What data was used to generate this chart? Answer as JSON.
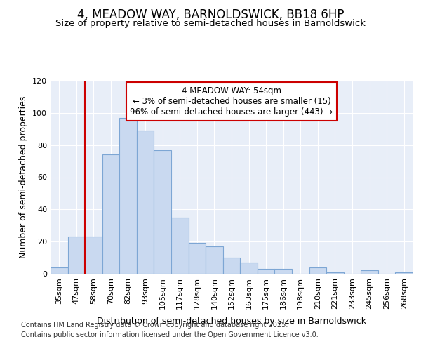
{
  "title": "4, MEADOW WAY, BARNOLDSWICK, BB18 6HP",
  "subtitle": "Size of property relative to semi-detached houses in Barnoldswick",
  "xlabel": "Distribution of semi-detached houses by size in Barnoldswick",
  "ylabel": "Number of semi-detached properties",
  "categories": [
    "35sqm",
    "47sqm",
    "58sqm",
    "70sqm",
    "82sqm",
    "93sqm",
    "105sqm",
    "117sqm",
    "128sqm",
    "140sqm",
    "152sqm",
    "163sqm",
    "175sqm",
    "186sqm",
    "198sqm",
    "210sqm",
    "221sqm",
    "233sqm",
    "245sqm",
    "256sqm",
    "268sqm"
  ],
  "values": [
    4,
    23,
    23,
    74,
    97,
    89,
    77,
    35,
    19,
    17,
    10,
    7,
    3,
    3,
    0,
    4,
    1,
    0,
    2,
    0,
    1
  ],
  "bar_color": "#c9d9f0",
  "bar_edge_color": "#7da6d4",
  "property_label": "4 MEADOW WAY: 54sqm",
  "annotation_line1": "← 3% of semi-detached houses are smaller (15)",
  "annotation_line2": "96% of semi-detached houses are larger (443) →",
  "annotation_box_facecolor": "#ffffff",
  "annotation_box_edgecolor": "#cc0000",
  "property_line_color": "#cc0000",
  "property_line_x": 2,
  "ylim": [
    0,
    120
  ],
  "yticks": [
    0,
    20,
    40,
    60,
    80,
    100,
    120
  ],
  "background_color": "#e8eef8",
  "grid_color": "#ffffff",
  "footer_line1": "Contains HM Land Registry data © Crown copyright and database right 2025.",
  "footer_line2": "Contains public sector information licensed under the Open Government Licence v3.0.",
  "title_fontsize": 12,
  "subtitle_fontsize": 9.5,
  "axis_label_fontsize": 9,
  "tick_fontsize": 8,
  "footer_fontsize": 7,
  "annotation_fontsize": 8.5
}
